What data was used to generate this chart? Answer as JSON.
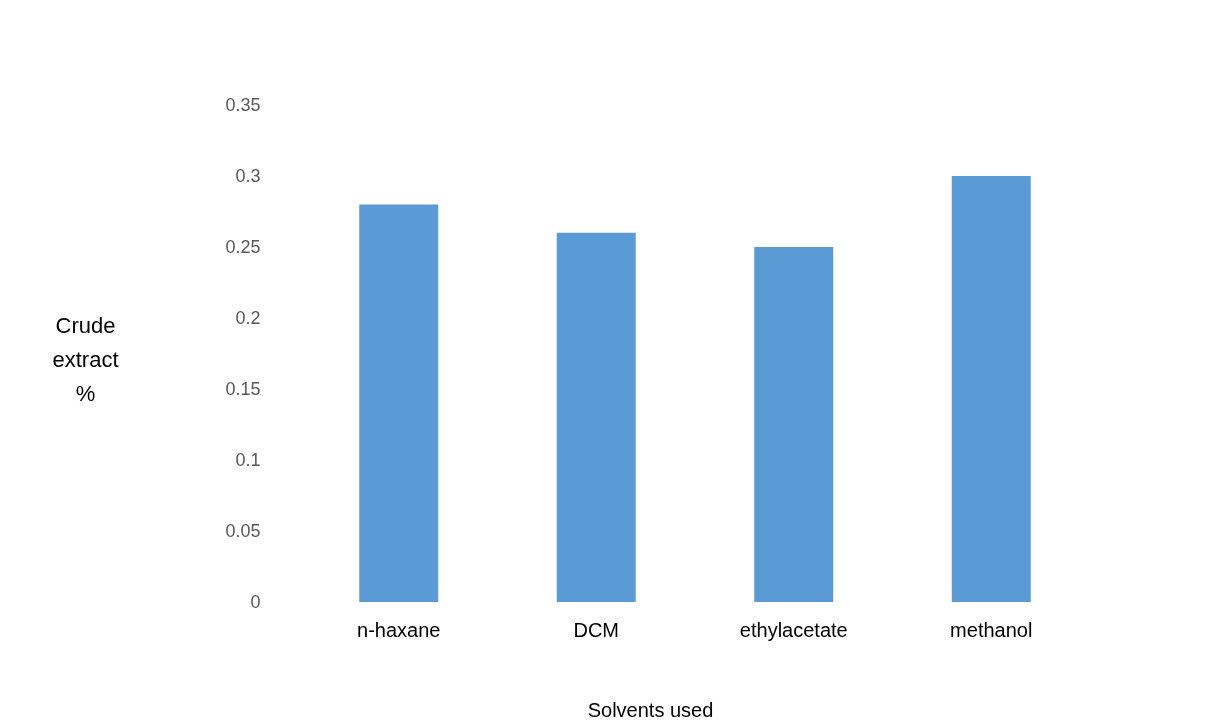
{
  "chart_data": {
    "type": "bar",
    "xlabel": "Solvents used",
    "ylabel": "Crude extract %",
    "categories": [
      "n-haxane",
      "DCM",
      "ethylacetate",
      "methanol"
    ],
    "values": [
      0.28,
      0.26,
      0.25,
      0.3
    ],
    "color": "#5b9bd5",
    "ylim": [
      0,
      0.35
    ],
    "yticks": [
      0,
      0.05,
      0.1,
      0.15,
      0.2,
      0.25,
      0.3,
      0.35
    ],
    "grid": false
  }
}
